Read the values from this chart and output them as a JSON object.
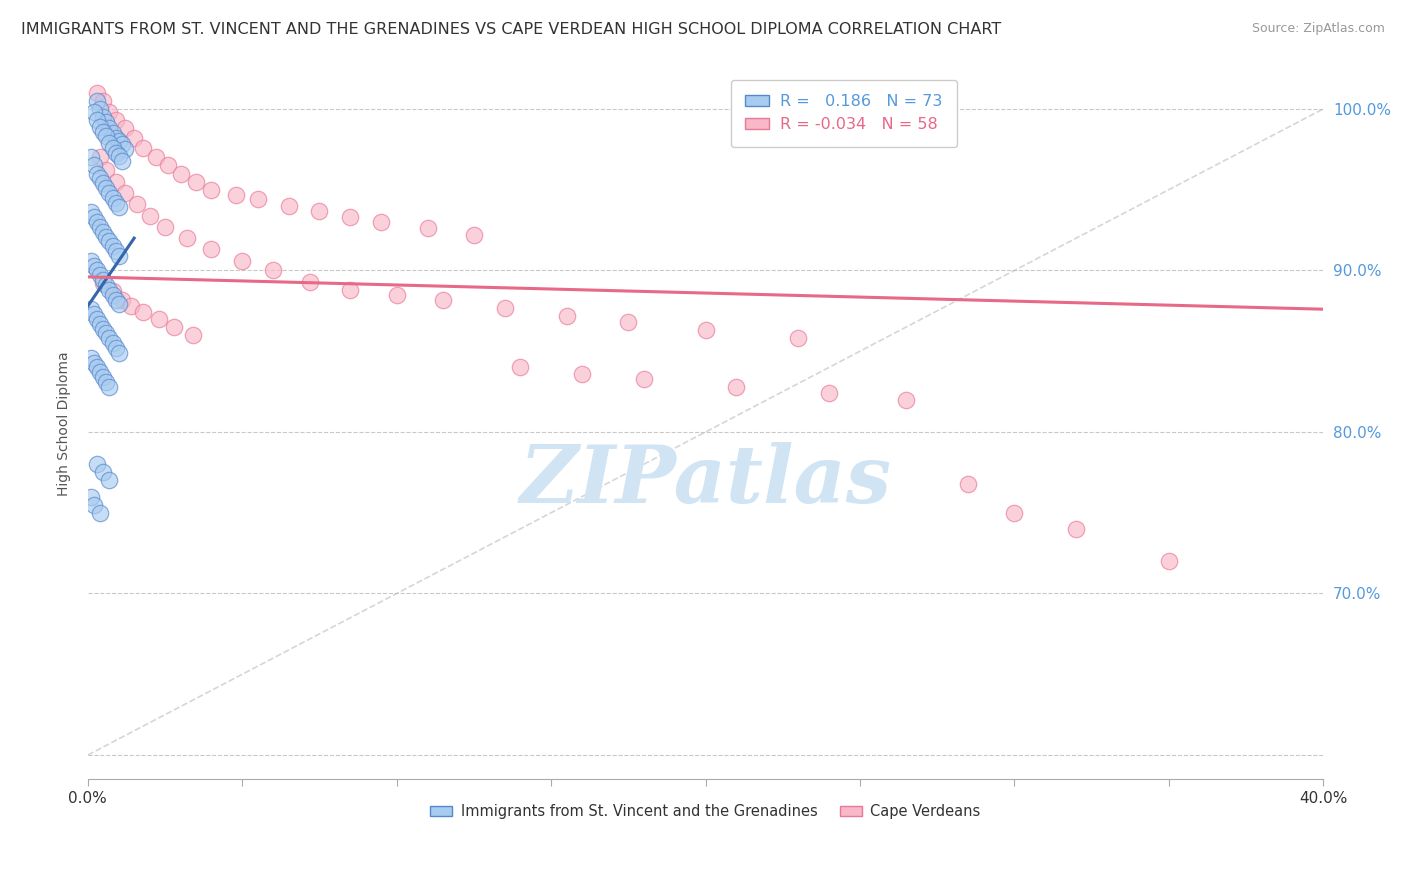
{
  "title": "IMMIGRANTS FROM ST. VINCENT AND THE GRENADINES VS CAPE VERDEAN HIGH SCHOOL DIPLOMA CORRELATION CHART",
  "source": "Source: ZipAtlas.com",
  "ylabel": "High School Diploma",
  "xlim": [
    0.0,
    0.4
  ],
  "ylim": [
    0.585,
    1.025
  ],
  "xtick_positions": [
    0.0,
    0.05,
    0.1,
    0.15,
    0.2,
    0.25,
    0.3,
    0.35,
    0.4
  ],
  "xtick_labels": [
    "0.0%",
    "",
    "",
    "",
    "",
    "",
    "",
    "",
    "40.0%"
  ],
  "ytick_positions": [
    0.6,
    0.7,
    0.8,
    0.9,
    1.0
  ],
  "right_ytick_labels": [
    "100.0%",
    "90.0%",
    "80.0%",
    "70.0%"
  ],
  "right_ytick_positions": [
    1.0,
    0.9,
    0.8,
    0.7
  ],
  "blue_R": 0.186,
  "blue_N": 73,
  "pink_R": -0.034,
  "pink_N": 58,
  "blue_color": "#A8CBF0",
  "pink_color": "#F8B8C8",
  "blue_edge_color": "#5588CC",
  "pink_edge_color": "#E87898",
  "blue_line_color": "#3366AA",
  "pink_line_color": "#E86888",
  "grid_color": "#BBBBBB",
  "title_color": "#333333",
  "source_color": "#999999",
  "axis_label_color": "#555555",
  "right_tick_color": "#5599DD",
  "watermark_color": "#D0E4F4",
  "blue_scatter_x": [
    0.003,
    0.004,
    0.005,
    0.006,
    0.007,
    0.008,
    0.009,
    0.01,
    0.011,
    0.012,
    0.002,
    0.003,
    0.004,
    0.005,
    0.006,
    0.007,
    0.008,
    0.009,
    0.01,
    0.011,
    0.001,
    0.002,
    0.003,
    0.004,
    0.005,
    0.006,
    0.007,
    0.008,
    0.009,
    0.01,
    0.001,
    0.002,
    0.003,
    0.004,
    0.005,
    0.006,
    0.007,
    0.008,
    0.009,
    0.01,
    0.001,
    0.002,
    0.003,
    0.004,
    0.005,
    0.006,
    0.007,
    0.008,
    0.009,
    0.01,
    0.001,
    0.002,
    0.003,
    0.004,
    0.005,
    0.006,
    0.007,
    0.008,
    0.009,
    0.01,
    0.001,
    0.002,
    0.003,
    0.004,
    0.005,
    0.006,
    0.007,
    0.003,
    0.005,
    0.007,
    0.001,
    0.002,
    0.004
  ],
  "blue_scatter_y": [
    1.005,
    1.0,
    0.995,
    0.992,
    0.988,
    0.985,
    0.982,
    0.98,
    0.978,
    0.975,
    0.998,
    0.993,
    0.989,
    0.986,
    0.983,
    0.979,
    0.976,
    0.973,
    0.971,
    0.968,
    0.97,
    0.965,
    0.96,
    0.957,
    0.954,
    0.951,
    0.948,
    0.945,
    0.942,
    0.939,
    0.936,
    0.933,
    0.93,
    0.927,
    0.924,
    0.921,
    0.918,
    0.915,
    0.912,
    0.909,
    0.906,
    0.903,
    0.9,
    0.897,
    0.894,
    0.891,
    0.888,
    0.885,
    0.882,
    0.879,
    0.876,
    0.873,
    0.87,
    0.867,
    0.864,
    0.861,
    0.858,
    0.855,
    0.852,
    0.849,
    0.846,
    0.843,
    0.84,
    0.837,
    0.834,
    0.831,
    0.828,
    0.78,
    0.775,
    0.77,
    0.76,
    0.755,
    0.75
  ],
  "pink_scatter_x": [
    0.003,
    0.005,
    0.007,
    0.009,
    0.012,
    0.015,
    0.018,
    0.022,
    0.026,
    0.03,
    0.035,
    0.04,
    0.048,
    0.055,
    0.065,
    0.075,
    0.085,
    0.095,
    0.11,
    0.125,
    0.004,
    0.006,
    0.009,
    0.012,
    0.016,
    0.02,
    0.025,
    0.032,
    0.04,
    0.05,
    0.06,
    0.072,
    0.085,
    0.1,
    0.115,
    0.135,
    0.155,
    0.175,
    0.2,
    0.23,
    0.005,
    0.008,
    0.011,
    0.014,
    0.018,
    0.023,
    0.028,
    0.034,
    0.14,
    0.16,
    0.18,
    0.21,
    0.24,
    0.265,
    0.285,
    0.3,
    0.32,
    0.35
  ],
  "pink_scatter_y": [
    1.01,
    1.005,
    0.998,
    0.993,
    0.988,
    0.982,
    0.976,
    0.97,
    0.965,
    0.96,
    0.955,
    0.95,
    0.947,
    0.944,
    0.94,
    0.937,
    0.933,
    0.93,
    0.926,
    0.922,
    0.97,
    0.962,
    0.955,
    0.948,
    0.941,
    0.934,
    0.927,
    0.92,
    0.913,
    0.906,
    0.9,
    0.893,
    0.888,
    0.885,
    0.882,
    0.877,
    0.872,
    0.868,
    0.863,
    0.858,
    0.892,
    0.887,
    0.882,
    0.878,
    0.874,
    0.87,
    0.865,
    0.86,
    0.84,
    0.836,
    0.833,
    0.828,
    0.824,
    0.82,
    0.768,
    0.75,
    0.74,
    0.72
  ],
  "blue_trend_x0": 0.0,
  "blue_trend_x1": 0.015,
  "blue_trend_y0": 0.878,
  "blue_trend_y1": 0.92,
  "pink_trend_x0": 0.0,
  "pink_trend_x1": 0.4,
  "pink_trend_y0": 0.896,
  "pink_trend_y1": 0.876,
  "ref_line_x0": 0.0,
  "ref_line_x1": 0.4,
  "ref_line_y0": 0.6,
  "ref_line_y1": 1.0,
  "figsize": [
    14.06,
    8.92
  ],
  "dpi": 100
}
